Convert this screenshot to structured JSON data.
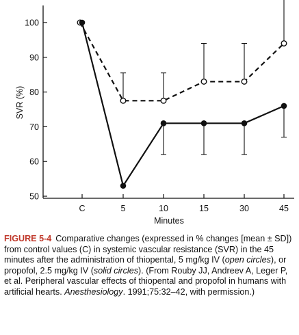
{
  "chart_data": {
    "type": "line",
    "categories": [
      "C",
      "5",
      "10",
      "15",
      "30",
      "45"
    ],
    "xlabel": "Minutes",
    "ylabel": "SVR (%)",
    "ylim": [
      50,
      100
    ],
    "yticks": [
      50,
      60,
      70,
      80,
      90,
      100
    ],
    "series": [
      {
        "marker": "open-circle",
        "line": "dashed",
        "values": [
          100,
          77.5,
          77.5,
          83,
          83,
          94
        ],
        "sd_upper": [
          100,
          85.5,
          85.5,
          94,
          94,
          110
        ]
      },
      {
        "marker": "solid-circle",
        "line": "solid",
        "values": [
          100,
          53,
          71,
          71,
          71,
          76
        ],
        "sd_lower": [
          100,
          53,
          62,
          62,
          62,
          67
        ]
      }
    ]
  },
  "caption": {
    "label": "FIGURE 5-4",
    "part1": "Comparative changes (expressed in % changes [mean ± SD]) from control values (C) in systemic vascular resistance (SVR) in the 45 minutes after the administration of thiopental, 5 mg/kg IV (",
    "open_circles": "open circles",
    "part2": "), or propofol, 2.5 mg/kg IV (",
    "solid_circles": "solid circles",
    "part3": "). (From Rouby JJ, Andreev A, Leger P, et al. Peripheral vascular effects of thiopental and propofol in humans with artificial hearts. ",
    "journal": "Anesthesiology",
    "part4": ". 1991;75:32–42, with permission.)"
  }
}
